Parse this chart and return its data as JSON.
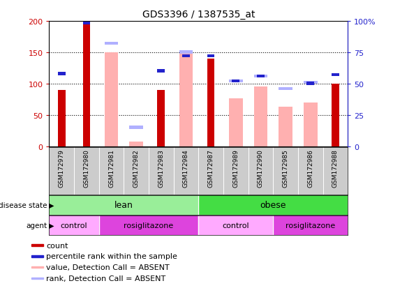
{
  "title": "GDS3396 / 1387535_at",
  "samples": [
    "GSM172979",
    "GSM172980",
    "GSM172981",
    "GSM172982",
    "GSM172983",
    "GSM172984",
    "GSM172987",
    "GSM172989",
    "GSM172990",
    "GSM172985",
    "GSM172986",
    "GSM172988"
  ],
  "count_values": [
    90,
    198,
    0,
    0,
    90,
    0,
    140,
    0,
    0,
    0,
    0,
    100
  ],
  "percentile_values": [
    58,
    98,
    0,
    0,
    60,
    72,
    72,
    52,
    56,
    0,
    50,
    57
  ],
  "absent_value_values": [
    0,
    0,
    150,
    8,
    0,
    148,
    0,
    76,
    95,
    63,
    70,
    0
  ],
  "absent_rank_values": [
    0,
    0,
    82,
    15,
    0,
    75,
    0,
    52,
    56,
    46,
    51,
    0
  ],
  "ylim": [
    0,
    200
  ],
  "yticks_left": [
    0,
    50,
    100,
    150,
    200
  ],
  "yticks_right": [
    0,
    25,
    50,
    75,
    100
  ],
  "count_color": "#cc0000",
  "percentile_color": "#2222cc",
  "absent_value_color": "#ffb0b0",
  "absent_rank_color": "#b0b0ff",
  "left_label_color": "#cc0000",
  "right_label_color": "#2222cc",
  "disease_lean_color": "#99ee99",
  "disease_obese_color": "#44dd44",
  "agent_control_color": "#ffaaff",
  "agent_rosiglitazone_color": "#dd44dd",
  "tick_bg_color": "#cccccc",
  "bg_color": "#ffffff"
}
